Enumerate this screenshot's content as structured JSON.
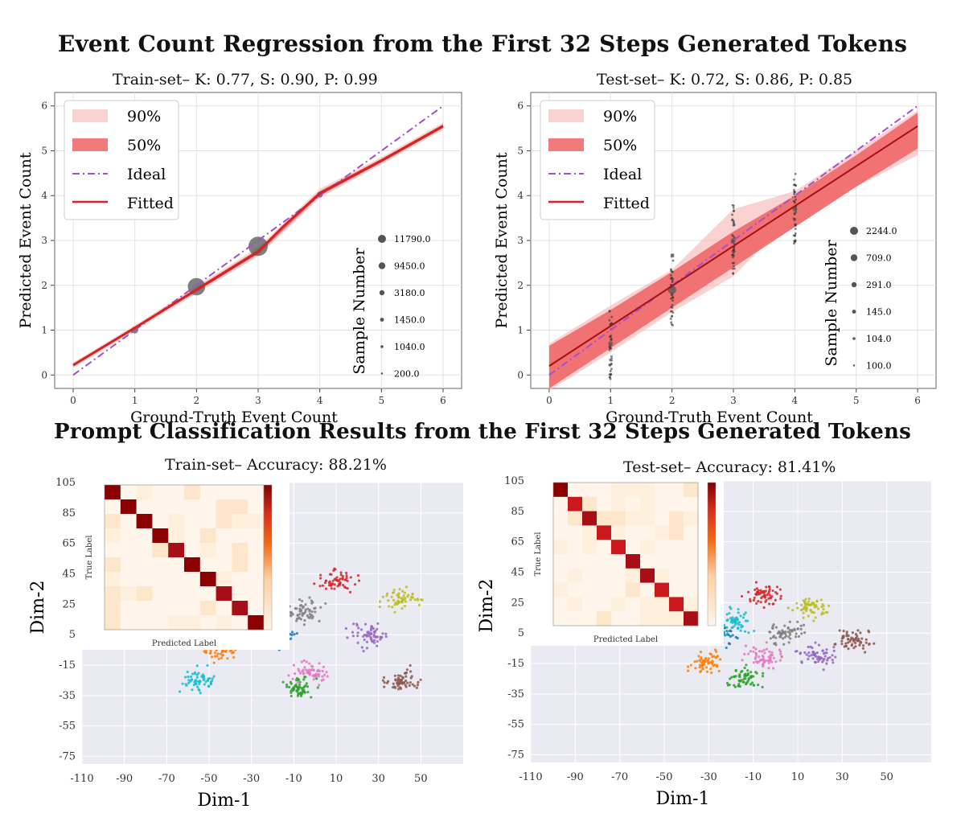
{
  "figure": {
    "top_title": "Event Count Regression from the First 32 Steps Generated Tokens",
    "bottom_title": "Prompt Classification Results from the First 32 Steps Generated Tokens"
  },
  "chart_data": [
    {
      "type": "scatter",
      "title": "Train-set– K: 0.77, S: 0.90, P: 0.99",
      "xlabel": "Ground-Truth Event Count",
      "ylabel": "Predicted Event Count",
      "xlim": [
        -0.3,
        6.3
      ],
      "ylim": [
        -0.3,
        6.3
      ],
      "xticks": [
        0,
        1,
        2,
        3,
        4,
        5,
        6
      ],
      "yticks": [
        0,
        1,
        2,
        3,
        4,
        5,
        6
      ],
      "grid": true,
      "legend": {
        "placement": "upper-left",
        "entries": [
          "90%",
          "50%",
          "Ideal",
          "Fitted"
        ]
      },
      "size_legend": {
        "title": "Sample Number",
        "placement": "lower-right",
        "values": [
          "11790.0",
          "9450.0",
          "3180.0",
          "1450.0",
          "1040.0",
          "200.0"
        ]
      },
      "ideal": {
        "x": [
          0,
          6
        ],
        "y": [
          0,
          6
        ]
      },
      "fitted": {
        "x": [
          0,
          1,
          2,
          3,
          3.4,
          4,
          5,
          6
        ],
        "y": [
          0.22,
          1.05,
          1.9,
          2.75,
          3.3,
          4.05,
          4.78,
          5.55
        ]
      },
      "band90": {
        "x": [
          0,
          1,
          2,
          3,
          4,
          5,
          6
        ],
        "lower": [
          0.16,
          0.99,
          1.82,
          2.65,
          3.95,
          4.7,
          5.47
        ],
        "upper": [
          0.28,
          1.11,
          1.98,
          2.85,
          4.15,
          4.86,
          5.63
        ]
      },
      "band50": {
        "x": [
          0,
          1,
          2,
          3,
          4,
          5,
          6
        ],
        "lower": [
          0.19,
          1.02,
          1.86,
          2.7,
          4.0,
          4.74,
          5.51
        ],
        "upper": [
          0.25,
          1.08,
          1.94,
          2.8,
          4.1,
          4.82,
          5.59
        ]
      },
      "points": [
        {
          "x": 1,
          "y": 1.0,
          "n": 1450
        },
        {
          "x": 2,
          "y": 1.97,
          "n": 9450
        },
        {
          "x": 3,
          "y": 2.87,
          "n": 11790
        },
        {
          "x": 4,
          "y": 4.02,
          "n": 1040
        }
      ]
    },
    {
      "type": "scatter",
      "title": "Test-set– K: 0.72, S: 0.86, P: 0.85",
      "xlabel": "Ground-Truth Event Count",
      "ylabel": "Predicted Event Count",
      "xlim": [
        -0.3,
        6.3
      ],
      "ylim": [
        -0.3,
        6.3
      ],
      "xticks": [
        0,
        1,
        2,
        3,
        4,
        5,
        6
      ],
      "yticks": [
        0,
        1,
        2,
        3,
        4,
        5,
        6
      ],
      "grid": true,
      "legend": {
        "placement": "upper-left",
        "entries": [
          "90%",
          "50%",
          "Ideal",
          "Fitted"
        ]
      },
      "size_legend": {
        "title": "Sample Number",
        "placement": "lower-right",
        "values": [
          "2244.0",
          "709.0",
          "291.0",
          "145.0",
          "104.0",
          "100.0"
        ]
      },
      "ideal": {
        "x": [
          0,
          6
        ],
        "y": [
          0,
          6
        ]
      },
      "fitted": {
        "x": [
          0,
          6
        ],
        "y": [
          0.2,
          5.55
        ]
      },
      "band90": {
        "x": [
          0,
          1,
          2,
          3,
          3.5,
          4,
          5,
          6
        ],
        "lower": [
          -0.35,
          0.5,
          1.4,
          2.2,
          2.9,
          3.3,
          4.2,
          4.9
        ],
        "upper": [
          0.7,
          1.55,
          2.35,
          3.7,
          3.9,
          4.1,
          5.0,
          5.9
        ]
      },
      "band50": {
        "x": [
          0,
          1,
          2,
          3,
          4,
          5,
          6
        ],
        "lower": [
          -0.3,
          0.6,
          1.5,
          2.4,
          3.3,
          4.2,
          5.05
        ],
        "upper": [
          0.65,
          1.45,
          2.3,
          3.2,
          4.0,
          4.9,
          5.85
        ]
      },
      "points": [
        {
          "x": 1,
          "y": 0.7,
          "n": 145
        },
        {
          "x": 2,
          "y": 1.9,
          "n": 2244
        },
        {
          "x": 3,
          "y": 3.0,
          "n": 709
        },
        {
          "x": 4,
          "y": 3.7,
          "n": 104
        }
      ]
    },
    {
      "type": "scatter",
      "title": "Train-set– Accuracy: 88.21%",
      "xlabel": "Dim-1",
      "ylabel": "Dim-2",
      "xlim": [
        -110,
        70
      ],
      "ylim": [
        -80,
        105
      ],
      "xticks": [
        -110,
        -90,
        -70,
        -50,
        -30,
        -10,
        10,
        30,
        50
      ],
      "yticks": [
        105,
        85,
        65,
        45,
        25,
        5,
        -15,
        -35,
        -55,
        -75
      ],
      "grid": true,
      "clusters": [
        {
          "class": 0,
          "color": "#1f77b4",
          "x": -18,
          "y": 4
        },
        {
          "class": 1,
          "color": "#ff7f0e",
          "x": -45,
          "y": -5
        },
        {
          "class": 2,
          "color": "#2ca02c",
          "x": -8,
          "y": -30
        },
        {
          "class": 3,
          "color": "#d62728",
          "x": 10,
          "y": 40
        },
        {
          "class": 4,
          "color": "#9467bd",
          "x": 25,
          "y": 4
        },
        {
          "class": 5,
          "color": "#8c564b",
          "x": 40,
          "y": -25
        },
        {
          "class": 6,
          "color": "#e377c2",
          "x": -2,
          "y": -20
        },
        {
          "class": 7,
          "color": "#7f7f7f",
          "x": -5,
          "y": 20
        },
        {
          "class": 8,
          "color": "#bcbd22",
          "x": 40,
          "y": 28
        },
        {
          "class": 9,
          "color": "#17becf",
          "x": -55,
          "y": -25
        }
      ],
      "inset_confusion_matrix": {
        "xlabel": "Predicted Label",
        "ylabel": "True Label",
        "diagonal": [
          0.95,
          0.93,
          0.94,
          0.92,
          0.9,
          0.94,
          0.91,
          0.89,
          0.9,
          0.93
        ]
      }
    },
    {
      "type": "scatter",
      "title": "Test-set– Accuracy: 81.41%",
      "xlabel": "Dim-1",
      "ylabel": "Dim-2",
      "xlim": [
        -110,
        70
      ],
      "ylim": [
        -80,
        105
      ],
      "xticks": [
        -110,
        -90,
        -70,
        -50,
        -30,
        -10,
        10,
        30,
        50
      ],
      "yticks": [
        105,
        85,
        65,
        45,
        25,
        5,
        -15,
        -35,
        -55,
        -75
      ],
      "grid": true,
      "clusters": [
        {
          "class": 0,
          "color": "#1f77b4",
          "x": -25,
          "y": 4
        },
        {
          "class": 1,
          "color": "#ff7f0e",
          "x": -30,
          "y": -15
        },
        {
          "class": 2,
          "color": "#2ca02c",
          "x": -13,
          "y": -25
        },
        {
          "class": 3,
          "color": "#d62728",
          "x": -5,
          "y": 30
        },
        {
          "class": 4,
          "color": "#9467bd",
          "x": 18,
          "y": -10
        },
        {
          "class": 5,
          "color": "#8c564b",
          "x": 35,
          "y": 0
        },
        {
          "class": 6,
          "color": "#e377c2",
          "x": -5,
          "y": -10
        },
        {
          "class": 7,
          "color": "#7f7f7f",
          "x": 5,
          "y": 5
        },
        {
          "class": 8,
          "color": "#bcbd22",
          "x": 15,
          "y": 22
        },
        {
          "class": 9,
          "color": "#17becf",
          "x": -18,
          "y": 12
        }
      ],
      "inset_confusion_matrix": {
        "xlabel": "Predicted Label",
        "ylabel": "True Label",
        "diagonal": [
          0.92,
          0.85,
          0.88,
          0.86,
          0.84,
          0.9,
          0.87,
          0.86,
          0.85,
          0.9
        ]
      }
    }
  ]
}
